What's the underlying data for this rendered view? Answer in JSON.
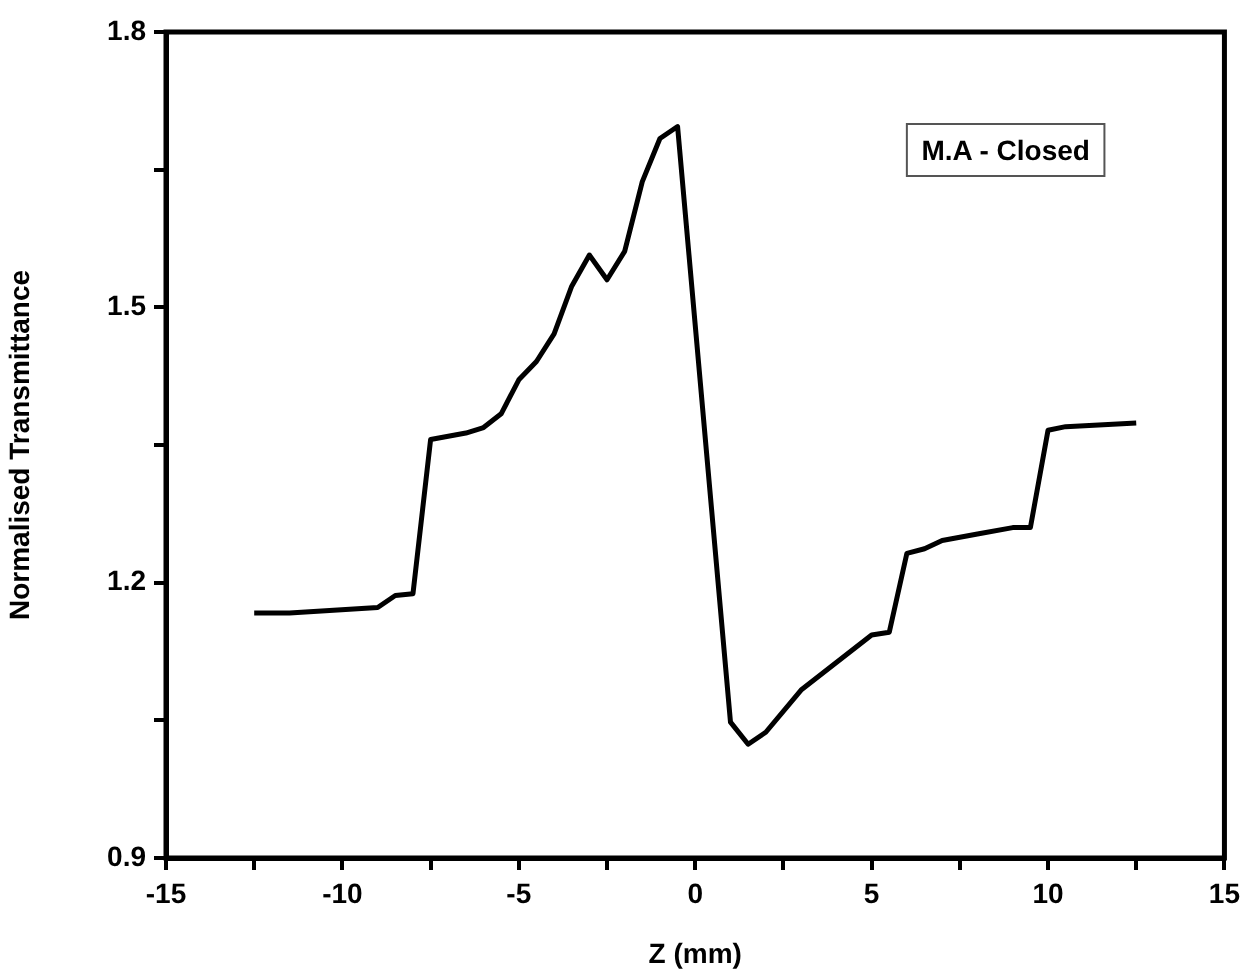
{
  "chart_data": {
    "type": "line",
    "xlabel": "Z (mm)",
    "ylabel": "Normalised Transmittance",
    "annotations": [
      "M.A - Closed"
    ],
    "x": [
      -12.5,
      -11.5,
      -9.0,
      -8.5,
      -8.0,
      -7.5,
      -6.5,
      -6.0,
      -5.5,
      -5.0,
      -4.5,
      -4.0,
      -3.5,
      -3.0,
      -2.5,
      -2.0,
      -1.5,
      -1.0,
      -0.5,
      1.0,
      1.5,
      2.0,
      3.0,
      4.0,
      5.0,
      5.5,
      6.0,
      6.5,
      7.0,
      8.0,
      9.0,
      9.5,
      10.0,
      10.5,
      12.5
    ],
    "series": [
      {
        "color": "#000000",
        "values": [
          1.167,
          1.167,
          1.173,
          1.186,
          1.188,
          1.356,
          1.363,
          1.369,
          1.384,
          1.421,
          1.441,
          1.471,
          1.523,
          1.557,
          1.53,
          1.561,
          1.637,
          1.684,
          1.697,
          1.048,
          1.024,
          1.037,
          1.083,
          1.113,
          1.143,
          1.146,
          1.232,
          1.237,
          1.246,
          1.253,
          1.26,
          1.26,
          1.366,
          1.37,
          1.374
        ]
      }
    ],
    "xlim": [
      -15,
      15
    ],
    "xticks": [
      -15,
      {
        "value": -12.5,
        "label": null
      },
      -10,
      {
        "value": -7.5,
        "label": null
      },
      -5,
      {
        "value": -2.5,
        "label": null
      },
      0,
      {
        "value": 2.5,
        "label": null
      },
      5,
      {
        "value": 7.5,
        "label": null
      },
      10,
      {
        "value": 12.5,
        "label": null
      },
      15
    ],
    "ylim": [
      0.9,
      1.8
    ],
    "yticks": [
      0.9,
      {
        "value": 1.05,
        "label": null
      },
      1.2,
      {
        "value": 1.35,
        "label": null
      },
      1.5,
      {
        "value": 1.65,
        "label": null
      },
      1.8
    ],
    "legend": false,
    "marker": "none",
    "line_style": "solid"
  }
}
